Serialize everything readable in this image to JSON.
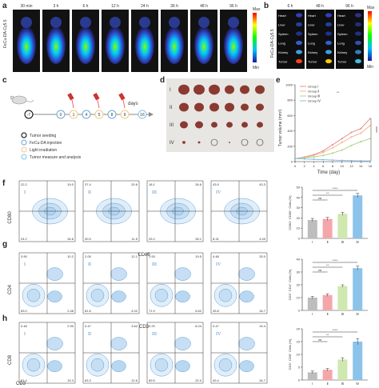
{
  "panels": {
    "a": {
      "letter": "a",
      "ylabel": "FeCu-DA-Cy5.5",
      "timepoints": [
        "30 min",
        "3 h",
        "6 h",
        "12 h",
        "24 h",
        "36 h",
        "48 h",
        "96 h"
      ],
      "scale_max": "Max",
      "scale_min": "Min"
    },
    "b": {
      "letter": "b",
      "ylabel": "FeCu-DA-Cy5.5",
      "timepoints": [
        "6 h",
        "48 h",
        "96 h"
      ],
      "organs": [
        "Heart",
        "Liver",
        "Spleen",
        "Lung",
        "Kidney",
        "Tumor"
      ],
      "scale_max": "Max",
      "scale_min": "Min"
    },
    "c": {
      "letter": "c",
      "days_label": "days",
      "timeline": [
        "-7",
        "0",
        "1",
        "4",
        "5",
        "8",
        "9",
        "16"
      ],
      "legend": [
        "Tumor seeding",
        "FeCu-DA injection",
        "Light irradiation",
        "Tumor measure and analysis"
      ]
    },
    "d": {
      "letter": "d",
      "groups": [
        "I",
        "II",
        "III",
        "IV"
      ]
    },
    "e": {
      "letter": "e",
      "significance": "****",
      "sig_small": "**"
    },
    "f": {
      "letter": "f",
      "xlabel": "CD86",
      "ylabel": "CD80",
      "bar_ylabel": "CD80⁺ CD86⁺ Cells (%)"
    },
    "g": {
      "letter": "g",
      "xlabel": "CD3",
      "ylabel": "CD4",
      "bar_ylabel": "CD3⁺ CD4⁺ Cells (%)"
    },
    "h": {
      "letter": "h",
      "xlabel": "CD3",
      "ylabel": "CD8",
      "bar_ylabel": "CD3⁺ CD8⁺ Cells (%)"
    }
  },
  "flow": {
    "f": [
      {
        "group": "I",
        "q": [
          "22.2",
          "19.0",
          "24.2",
          "34.6"
        ]
      },
      {
        "group": "II",
        "q": [
          "37.4",
          "20.6",
          "30.5",
          "11.5"
        ]
      },
      {
        "group": "III",
        "q": [
          "18.1",
          "26.6",
          "25.2",
          "28.1"
        ]
      },
      {
        "group": "IV",
        "q": [
          "43.9",
          "43.3",
          "8.31",
          "4.49"
        ]
      }
    ],
    "g": [
      {
        "group": "I",
        "q": [
          "3.90",
          "10.2",
          "83.0",
          "2.48"
        ]
      },
      {
        "group": "II",
        "q": [
          "2.09",
          "12.1",
          "81.8",
          "4.02"
        ]
      },
      {
        "group": "III",
        "q": [
          "1.93",
          "19.5",
          "71.9",
          "6.62"
        ]
      },
      {
        "group": "IV",
        "q": [
          "4.48",
          "33.0",
          "45.8",
          "16.7"
        ]
      }
    ],
    "h": [
      {
        "group": "I",
        "q": [
          "0.48",
          "2.90",
          "81.4",
          "15.3"
        ]
      },
      {
        "group": "II",
        "q": [
          "0.47",
          "3.62",
          "83.3",
          "12.6"
        ]
      },
      {
        "group": "III",
        "q": [
          "0.29",
          "8.24",
          "69.5",
          "22.0"
        ]
      },
      {
        "group": "IV",
        "q": [
          "0.47",
          "15.4",
          "49.4",
          "34.7"
        ]
      }
    ]
  },
  "chart_data": [
    {
      "type": "line",
      "xlabel": "Time (day)",
      "ylabel": "Tumor volume (mm³)",
      "x": [
        0,
        2,
        4,
        6,
        8,
        10,
        12,
        14,
        16
      ],
      "xticks": [
        0,
        2,
        4,
        6,
        8,
        10,
        12,
        14,
        16
      ],
      "yticks": [
        0,
        200,
        400,
        600,
        800,
        1000
      ],
      "ylim": [
        0,
        1000
      ],
      "series": [
        {
          "name": "Group Ⅰ",
          "color": "#e8848c",
          "values": [
            40,
            60,
            90,
            140,
            220,
            300,
            380,
            430,
            560
          ]
        },
        {
          "name": "Group Ⅱ",
          "color": "#f2b183",
          "values": [
            40,
            55,
            80,
            120,
            180,
            250,
            320,
            370,
            470
          ]
        },
        {
          "name": "Group Ⅲ",
          "color": "#a6d27d",
          "values": [
            40,
            50,
            60,
            80,
            110,
            150,
            210,
            260,
            300
          ]
        },
        {
          "name": "Group Ⅳ",
          "color": "#7fb9e0",
          "values": [
            40,
            35,
            30,
            25,
            20,
            15,
            12,
            10,
            8
          ]
        }
      ],
      "legend": "top-left"
    },
    {
      "type": "bar",
      "ylabel": "CD80⁺ CD86⁺ Cells (%)",
      "categories": [
        "Ⅰ",
        "Ⅱ",
        "Ⅲ",
        "Ⅳ"
      ],
      "values": [
        18,
        19,
        24,
        42
      ],
      "errors": [
        1.5,
        1.5,
        1.5,
        2
      ],
      "colors": [
        "#bdbdbd",
        "#f4a7ab",
        "#cfe8b0",
        "#8cc3ea"
      ],
      "ylim": [
        0,
        50
      ],
      "yticks": [
        0,
        10,
        20,
        30,
        40,
        50
      ],
      "sig": [
        "ns",
        "**",
        "****"
      ]
    },
    {
      "type": "bar",
      "ylabel": "CD3⁺ CD4⁺ Cells (%)",
      "categories": [
        "Ⅰ",
        "Ⅱ",
        "Ⅲ",
        "Ⅳ"
      ],
      "values": [
        10,
        12,
        19,
        33
      ],
      "errors": [
        1,
        1,
        1,
        1.5
      ],
      "colors": [
        "#bdbdbd",
        "#f4a7ab",
        "#cfe8b0",
        "#8cc3ea"
      ],
      "ylim": [
        0,
        40
      ],
      "yticks": [
        0,
        10,
        20,
        30,
        40
      ],
      "sig": [
        "ns",
        "**",
        "****"
      ]
    },
    {
      "type": "bar",
      "ylabel": "CD3⁺ CD8⁺ Cells (%)",
      "categories": [
        "Ⅰ",
        "Ⅱ",
        "Ⅲ",
        "Ⅳ"
      ],
      "values": [
        3,
        4,
        8,
        15
      ],
      "errors": [
        0.5,
        0.5,
        0.7,
        1.2
      ],
      "colors": [
        "#bdbdbd",
        "#f4a7ab",
        "#cfe8b0",
        "#8cc3ea"
      ],
      "ylim": [
        0,
        20
      ],
      "yticks": [
        0,
        5,
        10,
        15,
        20
      ],
      "sig": [
        "ns",
        "**",
        "****"
      ]
    }
  ]
}
